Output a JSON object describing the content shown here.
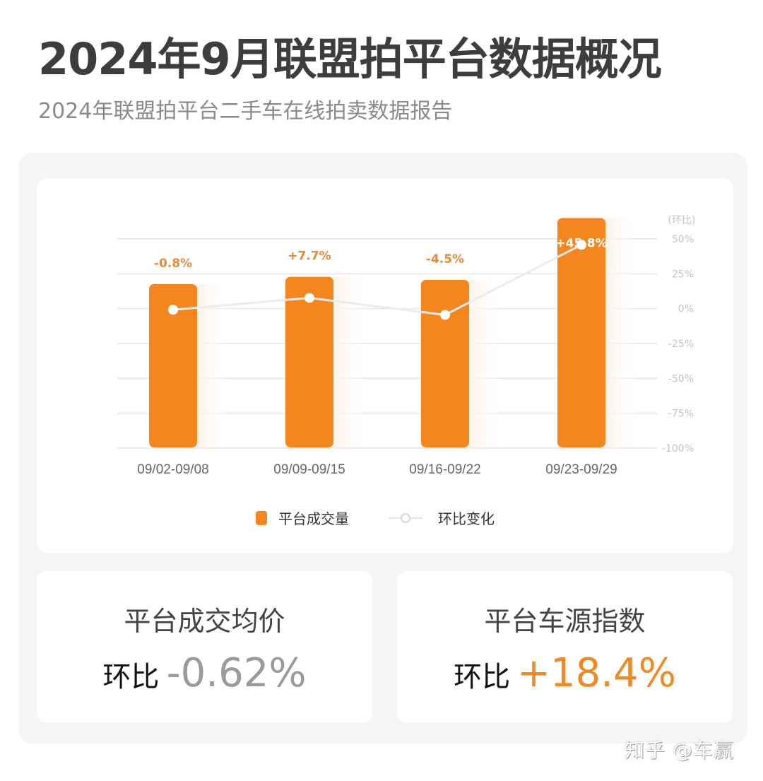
{
  "header": {
    "title": "2024年9月联盟拍平台数据概况",
    "subtitle": "2024年联盟拍平台二手车在线拍卖数据报告"
  },
  "colors": {
    "bar": "#f5861f",
    "label_orange": "#e8893a",
    "line": "#ececec",
    "grid": "#ececec",
    "axis_text": "#c4c4c4",
    "positive": "#f08a24",
    "negative": "#9a9a9a"
  },
  "chart": {
    "right_axis_title": "(环比)",
    "right_axis_ticks": [
      "50%",
      "25%",
      "0%",
      "-25%",
      "-50%",
      "-75%",
      "-100%"
    ],
    "categories": [
      "09/02-09/08",
      "09/09-09/15",
      "09/16-09/22",
      "09/23-09/29"
    ],
    "data_labels": [
      "-0.8%",
      "+7.7%",
      "-4.5%",
      "+45.8%"
    ],
    "legend": {
      "bar_label": "平台成交量",
      "line_label": "环比变化"
    }
  },
  "chart_data": {
    "type": "bar",
    "title": "2024年9月联盟拍平台数据概况",
    "categories": [
      "09/02-09/08",
      "09/09-09/15",
      "09/16-09/22",
      "09/23-09/29"
    ],
    "series": [
      {
        "name": "平台成交量",
        "type": "bar",
        "values": [
          100,
          104.5,
          102.6,
          140.5
        ],
        "note": "relative bar heights, no left axis shown"
      },
      {
        "name": "环比变化",
        "type": "line",
        "axis": "right",
        "values": [
          -0.8,
          7.7,
          -4.5,
          45.8
        ],
        "unit": "%"
      }
    ],
    "data_labels": [
      "-0.8%",
      "+7.7%",
      "-4.5%",
      "+45.8%"
    ],
    "xlabel": "",
    "ylabel_right": "(环比)",
    "ylim_right": [
      -100,
      50
    ],
    "yticks_right": [
      50,
      25,
      0,
      -25,
      -50,
      -75,
      -100
    ],
    "grid": true,
    "legend_position": "bottom"
  },
  "stats": [
    {
      "title": "平台成交均价",
      "prefix": "环比",
      "value": "-0.62%",
      "trend": "negative"
    },
    {
      "title": "平台车源指数",
      "prefix": "环比",
      "value": "+18.4%",
      "trend": "positive"
    }
  ],
  "watermark": "知乎 @车赢"
}
